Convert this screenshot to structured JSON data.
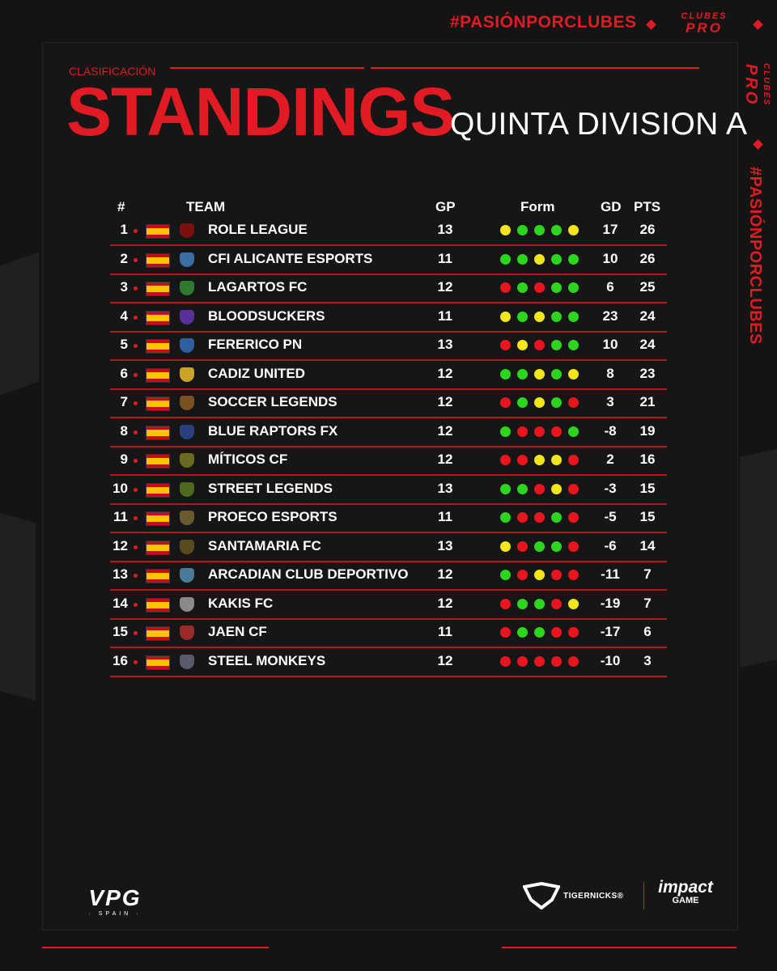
{
  "brand": {
    "hashtag": "#PASIÓNPORCLUBES",
    "logo_top": "CLUBES",
    "logo_bottom": "PRO"
  },
  "header": {
    "subtitle": "CLASIFICACIÓN",
    "title": "STANDINGS",
    "division": "QUINTA DIVISION A"
  },
  "table": {
    "columns": {
      "rank": "#",
      "team": "TEAM",
      "gp": "GP",
      "form": "Form",
      "gd": "GD",
      "pts": "PTS"
    },
    "rows": [
      {
        "rank": "1",
        "team": "ROLE LEAGUE",
        "gp": "13",
        "form": [
          "D",
          "W",
          "W",
          "W",
          "D"
        ],
        "gd": "17",
        "pts": "26"
      },
      {
        "rank": "2",
        "team": "CFI ALICANTE ESPORTS",
        "gp": "11",
        "form": [
          "W",
          "W",
          "D",
          "W",
          "W"
        ],
        "gd": "10",
        "pts": "26"
      },
      {
        "rank": "3",
        "team": "LAGARTOS FC",
        "gp": "12",
        "form": [
          "L",
          "W",
          "L",
          "W",
          "W"
        ],
        "gd": "6",
        "pts": "25"
      },
      {
        "rank": "4",
        "team": "BLOODSUCKERS",
        "gp": "11",
        "form": [
          "D",
          "W",
          "D",
          "W",
          "W"
        ],
        "gd": "23",
        "pts": "24"
      },
      {
        "rank": "5",
        "team": "FERERICO PN",
        "gp": "13",
        "form": [
          "L",
          "D",
          "L",
          "W",
          "W"
        ],
        "gd": "10",
        "pts": "24"
      },
      {
        "rank": "6",
        "team": "CADIZ UNITED",
        "gp": "12",
        "form": [
          "W",
          "W",
          "D",
          "W",
          "D"
        ],
        "gd": "8",
        "pts": "23"
      },
      {
        "rank": "7",
        "team": "SOCCER LEGENDS",
        "gp": "12",
        "form": [
          "L",
          "W",
          "D",
          "W",
          "L"
        ],
        "gd": "3",
        "pts": "21"
      },
      {
        "rank": "8",
        "team": "BLUE RAPTORS FX",
        "gp": "12",
        "form": [
          "W",
          "L",
          "L",
          "L",
          "W"
        ],
        "gd": "-8",
        "pts": "19"
      },
      {
        "rank": "9",
        "team": "MÍTICOS CF",
        "gp": "12",
        "form": [
          "L",
          "L",
          "D",
          "D",
          "L"
        ],
        "gd": "2",
        "pts": "16"
      },
      {
        "rank": "10",
        "team": "STREET LEGENDS",
        "gp": "13",
        "form": [
          "W",
          "W",
          "L",
          "D",
          "L"
        ],
        "gd": "-3",
        "pts": "15"
      },
      {
        "rank": "11",
        "team": "PROECO ESPORTS",
        "gp": "11",
        "form": [
          "W",
          "L",
          "L",
          "W",
          "L"
        ],
        "gd": "-5",
        "pts": "15"
      },
      {
        "rank": "12",
        "team": "SANTAMARIA FC",
        "gp": "13",
        "form": [
          "D",
          "L",
          "W",
          "W",
          "L"
        ],
        "gd": "-6",
        "pts": "14"
      },
      {
        "rank": "13",
        "team": "ARCADIAN CLUB DEPORTIVO",
        "gp": "12",
        "form": [
          "W",
          "L",
          "D",
          "L",
          "L"
        ],
        "gd": "-11",
        "pts": "7"
      },
      {
        "rank": "14",
        "team": "KAKIS FC",
        "gp": "12",
        "form": [
          "L",
          "W",
          "W",
          "L",
          "D"
        ],
        "gd": "-19",
        "pts": "7"
      },
      {
        "rank": "15",
        "team": "JAEN CF",
        "gp": "11",
        "form": [
          "L",
          "W",
          "W",
          "L",
          "L"
        ],
        "gd": "-17",
        "pts": "6"
      },
      {
        "rank": "16",
        "team": "STEEL MONKEYS",
        "gp": "12",
        "form": [
          "L",
          "L",
          "L",
          "L",
          "L"
        ],
        "gd": "-10",
        "pts": "3"
      }
    ]
  },
  "footer": {
    "vpg_logo": "VPG",
    "vpg_sub": "· SPAIN ·",
    "sponsor1": "TIGERNICKS®",
    "sponsor2_top": "impact",
    "sponsor2_bottom": "GAME"
  },
  "colors": {
    "accent": "#e01b24",
    "win": "#2ed51e",
    "draw": "#f2e51a",
    "loss": "#e8151e"
  }
}
